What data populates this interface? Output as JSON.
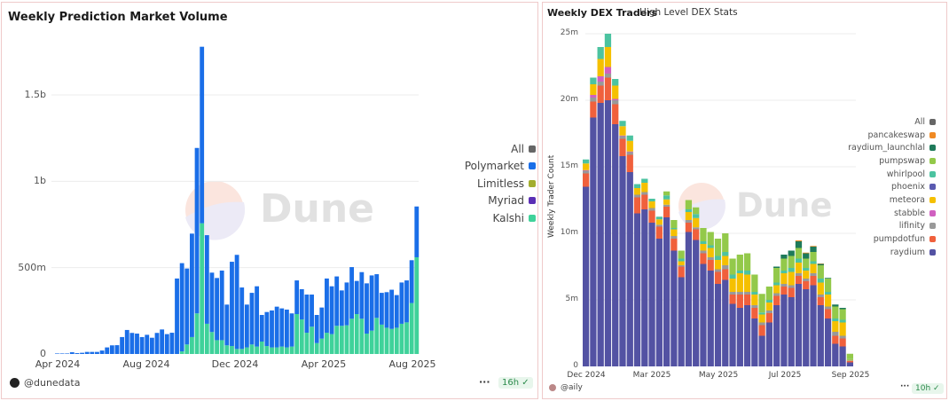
{
  "left": {
    "title": "Weekly Prediction Market Volume",
    "author": "@dunedata",
    "refresh": "16h",
    "more": "···",
    "watermark": "Dune"
  },
  "right": {
    "title": "Weekly DEX Traders",
    "subtitle": "High Level DEX Stats",
    "author": "@aily",
    "refresh": "10h",
    "more": "···",
    "watermark": "Dune"
  },
  "chart_data": [
    {
      "type": "bar",
      "stacked": true,
      "title": "Weekly Prediction Market Volume",
      "xlabel": "",
      "ylabel": "",
      "x_interval": "weekly",
      "x_ticks": [
        "Apr 2024",
        "Aug 2024",
        "Dec 2024",
        "Apr 2025",
        "Aug 2025"
      ],
      "y_ticks": [
        "0",
        "500m",
        "1b",
        "1.5b"
      ],
      "ylim": [
        0,
        1800000000
      ],
      "grid": true,
      "legend_position": "right",
      "legend": [
        {
          "name": "All",
          "color": "#666666"
        },
        {
          "name": "Polymarket",
          "color": "#1a6ee8"
        },
        {
          "name": "Limitless",
          "color": "#a3ad2e"
        },
        {
          "name": "Myriad",
          "color": "#5b2fb5"
        },
        {
          "name": "Kalshi",
          "color": "#3fd29a"
        }
      ],
      "unit": "millions USD",
      "series": [
        {
          "name": "Kalshi",
          "color": "#3fd29a",
          "values": [
            0,
            0,
            0,
            0,
            0,
            0,
            0,
            0,
            0,
            0,
            0,
            0,
            0,
            0,
            0,
            0,
            0,
            0,
            0,
            0,
            0,
            0,
            0,
            0,
            0,
            15,
            55,
            98,
            235,
            757,
            175,
            127,
            80,
            80,
            50,
            46,
            29,
            29,
            38,
            55,
            43,
            72,
            46,
            38,
            38,
            43,
            38,
            43,
            231,
            200,
            123,
            158,
            63,
            89,
            123,
            115,
            163,
            163,
            166,
            204,
            231,
            204,
            118,
            135,
            209,
            170,
            152,
            145,
            152,
            175,
            183,
            295,
            560
          ]
        },
        {
          "name": "Polymarket",
          "color": "#1a6ee8",
          "values": [
            3,
            3,
            3,
            10,
            5,
            7,
            12,
            12,
            12,
            20,
            38,
            50,
            51,
            98,
            139,
            122,
            118,
            98,
            111,
            94,
            122,
            142,
            115,
            123,
            437,
            511,
            440,
            599,
            958,
            1022,
            513,
            344,
            360,
            403,
            236,
            488,
            545,
            356,
            248,
            299,
            349,
            154,
            197,
            214,
            236,
            221,
            219,
            192,
            195,
            175,
            221,
            186,
            163,
            180,
            314,
            277,
            286,
            205,
            248,
            299,
            192,
            270,
            291,
            320,
            253,
            184,
            206,
            227,
            189,
            239,
            243,
            248,
            294
          ]
        }
      ]
    },
    {
      "type": "bar",
      "stacked": true,
      "title": "Weekly DEX Traders",
      "subtitle": "High Level DEX Stats",
      "xlabel": "",
      "ylabel": "Weekly Trader Count",
      "x_interval": "weekly",
      "x_ticks": [
        "Dec 2024",
        "Mar 2025",
        "May 2025",
        "Jul 2025",
        "Sep 2025"
      ],
      "y_ticks": [
        "0",
        "5m",
        "10m",
        "15m",
        "20m",
        "25m"
      ],
      "ylim": [
        0,
        25000000
      ],
      "grid": true,
      "legend_position": "right",
      "unit": "millions",
      "legend": [
        {
          "name": "All",
          "color": "#666666"
        },
        {
          "name": "pancakeswap",
          "color": "#f08a24"
        },
        {
          "name": "raydium_launchlal",
          "color": "#1e7a5a"
        },
        {
          "name": "pumpswap",
          "color": "#93c94a"
        },
        {
          "name": "whirlpool",
          "color": "#4cc3a0"
        },
        {
          "name": "phoenix",
          "color": "#5a5ab0"
        },
        {
          "name": "meteora",
          "color": "#f5c000"
        },
        {
          "name": "stabble",
          "color": "#d060c0"
        },
        {
          "name": "lifinity",
          "color": "#999999"
        },
        {
          "name": "pumpdotfun",
          "color": "#f0603c"
        },
        {
          "name": "raydium",
          "color": "#5352a3"
        }
      ],
      "series": [
        {
          "name": "raydium",
          "color": "#5352a3",
          "values": [
            13.5,
            18.7,
            19.8,
            20,
            18.2,
            15.8,
            14.6,
            11.5,
            11.8,
            10.8,
            9.6,
            11.2,
            8.7,
            6.7,
            10.1,
            9.5,
            7.7,
            7.2,
            6.2,
            6.5,
            4.7,
            4.4,
            4.6,
            3.6,
            2.3,
            3.3,
            4.6,
            5.4,
            5.2,
            6.2,
            5.8,
            6.1,
            4.6,
            3.6,
            1.7,
            1.5,
            0.3
          ]
        },
        {
          "name": "pumpdotfun",
          "color": "#f0603c",
          "values": [
            1.0,
            1.2,
            1.3,
            1.7,
            1.5,
            1.3,
            1.3,
            1.2,
            1.1,
            0.9,
            0.9,
            0.8,
            0.9,
            0.8,
            0.7,
            0.8,
            0.8,
            0.8,
            0.9,
            0.8,
            0.7,
            1.0,
            0.8,
            0.8,
            0.8,
            0.7,
            0.7,
            0.6,
            0.7,
            0.6,
            0.6,
            0.7,
            0.6,
            0.7,
            0.6,
            0.6,
            0.1
          ]
        },
        {
          "name": "lifinity",
          "color": "#999999",
          "values": [
            0.2,
            0.3,
            0.3,
            0.3,
            0.3,
            0.2,
            0.2,
            0.2,
            0.2,
            0.2,
            0.15,
            0.15,
            0.2,
            0.1,
            0.2,
            0.15,
            0.2,
            0.2,
            0.2,
            0.3,
            0.2,
            0.2,
            0.2,
            0.2,
            0.2,
            0.2,
            0.2,
            0.2,
            0.2,
            0.2,
            0.2,
            0.2,
            0.2,
            0.2,
            0.3,
            0.2,
            0.05
          ]
        },
        {
          "name": "stabble",
          "color": "#d060c0",
          "values": [
            0.05,
            0.2,
            0.4,
            0.5,
            0.1,
            0.05,
            0.05,
            0,
            0,
            0,
            0,
            0,
            0,
            0,
            0,
            0,
            0,
            0,
            0,
            0,
            0,
            0,
            0,
            0,
            0,
            0,
            0,
            0,
            0,
            0,
            0,
            0,
            0,
            0,
            0,
            0,
            0
          ]
        },
        {
          "name": "meteora",
          "color": "#f5c000",
          "values": [
            0.5,
            0.8,
            1.3,
            1.5,
            1.0,
            0.7,
            0.8,
            0.5,
            0.7,
            0.5,
            0.4,
            0.4,
            0.5,
            0.3,
            0.6,
            0.7,
            0.5,
            0.7,
            0.7,
            0.7,
            1.0,
            1.4,
            1.3,
            0.8,
            0.6,
            0.6,
            0.6,
            0.8,
            1.0,
            0.8,
            0.6,
            0.7,
            0.9,
            0.9,
            0.8,
            1.0,
            0.05
          ]
        },
        {
          "name": "phoenix",
          "color": "#5a5ab0",
          "values": [
            0,
            0,
            0,
            0,
            0,
            0,
            0,
            0,
            0,
            0,
            0,
            0,
            0,
            0,
            0,
            0,
            0,
            0,
            0,
            0,
            0,
            0,
            0,
            0,
            0,
            0,
            0,
            0,
            0,
            0,
            0,
            0,
            0,
            0,
            0,
            0,
            0
          ]
        },
        {
          "name": "whirlpool",
          "color": "#4cc3a0",
          "values": [
            0.3,
            0.5,
            0.9,
            1.0,
            0.5,
            0.4,
            0.4,
            0.3,
            0.3,
            0.2,
            0.2,
            0.3,
            0.1,
            0.2,
            0.2,
            0.3,
            0.2,
            0.2,
            0.3,
            0.3,
            0.3,
            0.2,
            0.3,
            0.2,
            0.15,
            0.2,
            0.2,
            0.2,
            0.3,
            0.3,
            0.2,
            0.2,
            0.3,
            0.2,
            0.2,
            0.2,
            0.05
          ]
        },
        {
          "name": "pumpswap",
          "color": "#93c94a",
          "values": [
            0,
            0,
            0,
            0,
            0,
            0,
            0,
            0,
            0,
            0,
            0,
            0.3,
            0.6,
            0.6,
            0.7,
            0.5,
            1.0,
            1.0,
            1.3,
            1.4,
            1.2,
            1.2,
            1.3,
            1.3,
            1.4,
            1.0,
            1.1,
            0.9,
            0.9,
            0.8,
            0.7,
            0.7,
            1.0,
            1.0,
            0.9,
            0.8,
            0.4
          ]
        },
        {
          "name": "raydium_launchlab",
          "color": "#1e7a5a",
          "values": [
            0,
            0,
            0,
            0,
            0,
            0,
            0,
            0,
            0,
            0,
            0,
            0,
            0,
            0,
            0,
            0,
            0,
            0,
            0,
            0,
            0,
            0,
            0,
            0,
            0,
            0,
            0.1,
            0.3,
            0.4,
            0.5,
            0.4,
            0.4,
            0.1,
            0.05,
            0.15,
            0.1,
            0
          ]
        },
        {
          "name": "pancakeswap",
          "color": "#f08a24",
          "values": [
            0,
            0,
            0,
            0,
            0,
            0,
            0,
            0,
            0,
            0,
            0,
            0,
            0,
            0,
            0,
            0,
            0,
            0,
            0,
            0,
            0,
            0,
            0,
            0,
            0,
            0,
            0,
            0,
            0,
            0.07,
            0.05,
            0.05,
            0.03,
            0,
            0,
            0,
            0
          ]
        }
      ]
    }
  ]
}
